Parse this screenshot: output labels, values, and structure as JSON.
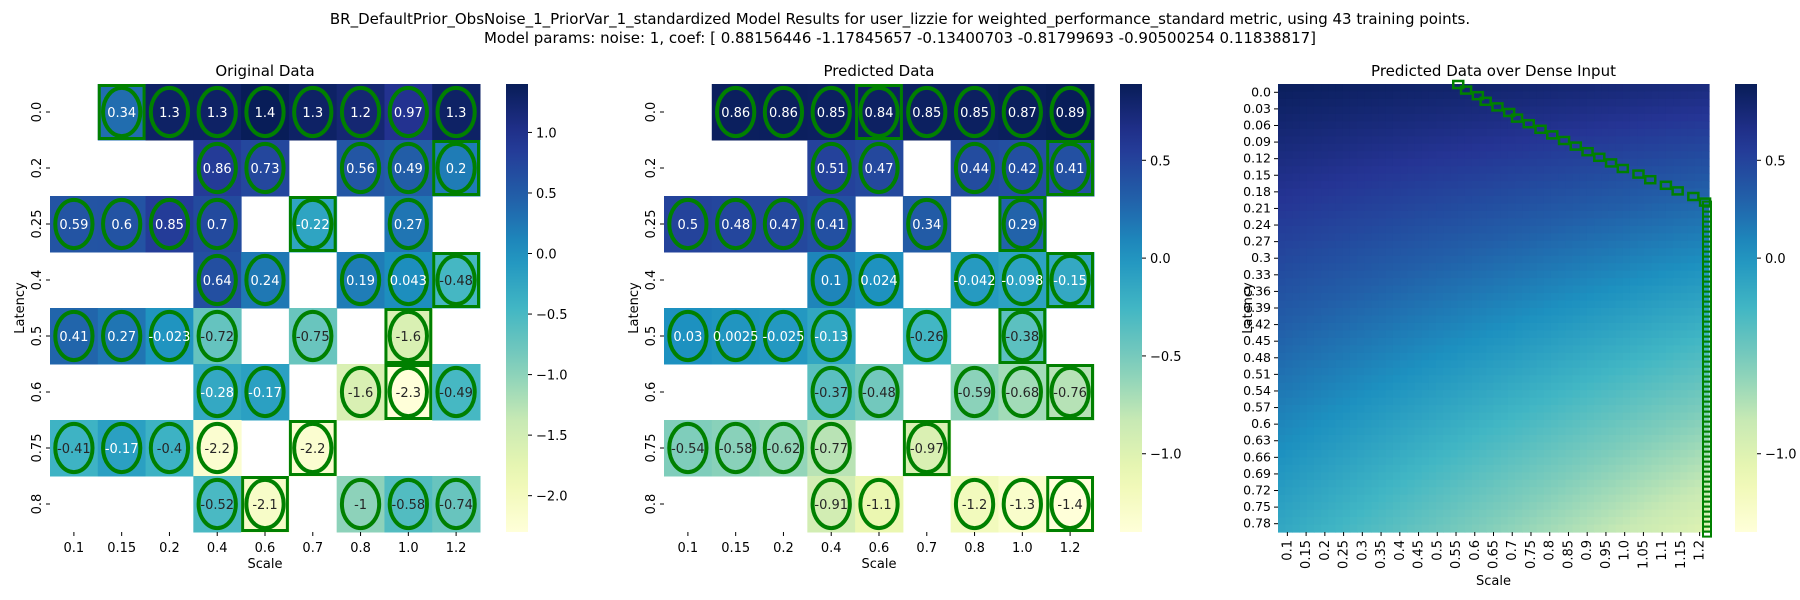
{
  "figure": {
    "title_line1": "BR_DefaultPrior_ObsNoise_1_PriorVar_1_standardized Model Results for user_lizzie for weighted_performance_standard metric, using 43 training points.",
    "title_line2": "Model params: noise: 1, coef: [ 0.88156446 -1.17845657 -0.13400703 -0.81799693 -0.90500254  0.11838817]"
  },
  "colors": {
    "cmap": [
      "#ffffd9",
      "#edf8b1",
      "#c7e9b4",
      "#7fcdbb",
      "#41b6c4",
      "#1d91c0",
      "#225ea8",
      "#253494",
      "#081d58"
    ],
    "marker": "#008000"
  },
  "chart_data": [
    {
      "type": "heatmap",
      "title": "Original Data",
      "xlabel": "Scale",
      "ylabel": "Latency",
      "x_tick_labels": [
        "0.1",
        "0.15",
        "0.2",
        "0.4",
        "0.6",
        "0.7",
        "0.8",
        "1.0",
        "1.2"
      ],
      "y_tick_labels": [
        "0.0",
        "0.2",
        "0.25",
        "0.4",
        "0.5",
        "0.6",
        "0.75",
        "0.8"
      ],
      "vmin": -2.3,
      "vmax": 1.4,
      "colorbar_ticks": [
        1.0,
        0.5,
        0.0,
        -0.5,
        -1.0,
        -1.5,
        -2.0
      ],
      "colorbar_tick_labels": [
        "1.0",
        "0.5",
        "0.0",
        "−0.5",
        "−1.0",
        "−1.5",
        "−2.0"
      ],
      "values": [
        [
          null,
          0.34,
          1.3,
          1.3,
          1.4,
          1.3,
          1.2,
          0.97,
          1.3
        ],
        [
          null,
          null,
          null,
          0.86,
          0.73,
          null,
          0.56,
          0.49,
          0.2
        ],
        [
          0.59,
          0.6,
          0.85,
          0.7,
          null,
          -0.22,
          null,
          0.27,
          null
        ],
        [
          null,
          null,
          null,
          0.64,
          0.24,
          null,
          0.19,
          0.043,
          -0.48
        ],
        [
          0.41,
          0.27,
          -0.023,
          -0.72,
          null,
          -0.75,
          null,
          -1.6,
          null
        ],
        [
          null,
          null,
          null,
          -0.28,
          -0.17,
          null,
          -1.6,
          -2.3,
          -0.49
        ],
        [
          -0.41,
          -0.17,
          -0.4,
          -2.2,
          null,
          -2.2,
          null,
          null,
          null
        ],
        [
          null,
          null,
          null,
          -0.52,
          -2.1,
          null,
          -1,
          -0.58,
          -0.74
        ]
      ],
      "annotations": [
        [
          null,
          "0.34",
          "1.3",
          "1.3",
          "1.4",
          "1.3",
          "1.2",
          "0.97",
          "1.3"
        ],
        [
          null,
          null,
          null,
          "0.86",
          "0.73",
          null,
          "0.56",
          "0.49",
          "0.2"
        ],
        [
          "0.59",
          "0.6",
          "0.85",
          "0.7",
          null,
          "-0.22",
          null,
          "0.27",
          null
        ],
        [
          null,
          null,
          null,
          "0.64",
          "0.24",
          null,
          "0.19",
          "0.043",
          "-0.48"
        ],
        [
          "0.41",
          "0.27",
          "-0.023",
          "-0.72",
          null,
          "-0.75",
          null,
          "-1.6",
          null
        ],
        [
          null,
          null,
          null,
          "-0.28",
          "-0.17",
          null,
          "-1.6",
          "-2.3",
          "-0.49"
        ],
        [
          "-0.41",
          "-0.17",
          "-0.4",
          "-2.2",
          null,
          "-2.2",
          null,
          null,
          null
        ],
        [
          null,
          null,
          null,
          "-0.52",
          "-2.1",
          null,
          "-1",
          "-0.58",
          "-0.74"
        ]
      ],
      "highlight_boxes": [
        [
          0,
          1
        ],
        [
          1,
          8
        ],
        [
          2,
          5
        ],
        [
          3,
          8
        ],
        [
          4,
          7
        ],
        [
          5,
          7
        ],
        [
          6,
          5
        ],
        [
          7,
          4
        ]
      ]
    },
    {
      "type": "heatmap",
      "title": "Predicted Data",
      "xlabel": "Scale",
      "ylabel": "Latency",
      "x_tick_labels": [
        "0.1",
        "0.15",
        "0.2",
        "0.4",
        "0.6",
        "0.7",
        "0.8",
        "1.0",
        "1.2"
      ],
      "y_tick_labels": [
        "0.0",
        "0.2",
        "0.25",
        "0.4",
        "0.5",
        "0.6",
        "0.75",
        "0.8"
      ],
      "vmin": -1.4,
      "vmax": 0.89,
      "colorbar_ticks": [
        0.5,
        0.0,
        -0.5,
        -1.0
      ],
      "colorbar_tick_labels": [
        "0.5",
        "0.0",
        "−0.5",
        "−1.0"
      ],
      "values": [
        [
          null,
          0.86,
          0.86,
          0.85,
          0.84,
          0.85,
          0.85,
          0.87,
          0.89
        ],
        [
          null,
          null,
          null,
          0.51,
          0.47,
          null,
          0.44,
          0.42,
          0.41
        ],
        [
          0.5,
          0.48,
          0.47,
          0.41,
          null,
          0.34,
          null,
          0.29,
          null
        ],
        [
          null,
          null,
          null,
          0.1,
          0.024,
          null,
          -0.042,
          -0.098,
          -0.15
        ],
        [
          0.03,
          0.0025,
          -0.025,
          -0.13,
          null,
          -0.26,
          null,
          -0.38,
          null
        ],
        [
          null,
          null,
          null,
          -0.37,
          -0.48,
          null,
          -0.59,
          -0.68,
          -0.76
        ],
        [
          -0.54,
          -0.58,
          -0.62,
          -0.77,
          null,
          -0.97,
          null,
          null,
          null
        ],
        [
          null,
          null,
          null,
          -0.91,
          -1.1,
          null,
          -1.2,
          -1.3,
          -1.4
        ]
      ],
      "annotations": [
        [
          null,
          "0.86",
          "0.86",
          "0.85",
          "0.84",
          "0.85",
          "0.85",
          "0.87",
          "0.89"
        ],
        [
          null,
          null,
          null,
          "0.51",
          "0.47",
          null,
          "0.44",
          "0.42",
          "0.41"
        ],
        [
          "0.5",
          "0.48",
          "0.47",
          "0.41",
          null,
          "0.34",
          null,
          "0.29",
          null
        ],
        [
          null,
          null,
          null,
          "0.1",
          "0.024",
          null,
          "-0.042",
          "-0.098",
          "-0.15"
        ],
        [
          "0.03",
          "0.0025",
          "-0.025",
          "-0.13",
          null,
          "-0.26",
          null,
          "-0.38",
          null
        ],
        [
          null,
          null,
          null,
          "-0.37",
          "-0.48",
          null,
          "-0.59",
          "-0.68",
          "-0.76"
        ],
        [
          "-0.54",
          "-0.58",
          "-0.62",
          "-0.77",
          null,
          "-0.97",
          null,
          null,
          null
        ],
        [
          null,
          null,
          null,
          "-0.91",
          "-1.1",
          null,
          "-1.2",
          "-1.3",
          "-1.4"
        ]
      ],
      "highlight_boxes": [
        [
          0,
          4
        ],
        [
          1,
          8
        ],
        [
          2,
          7
        ],
        [
          3,
          8
        ],
        [
          4,
          7
        ],
        [
          5,
          8
        ],
        [
          6,
          5
        ],
        [
          7,
          8
        ]
      ]
    },
    {
      "type": "heatmap",
      "title": "Predicted Data over Dense Input",
      "xlabel": "Scale",
      "ylabel": "Latency",
      "x_tick_labels": [
        "0.1",
        "0.15",
        "0.2",
        "0.25",
        "0.3",
        "0.35",
        "0.4",
        "0.45",
        "0.5",
        "0.55",
        "0.6",
        "0.65",
        "0.7",
        "0.75",
        "0.8",
        "0.85",
        "0.9",
        "0.95",
        "1.0",
        "1.05",
        "1.1",
        "1.15",
        "1.2"
      ],
      "y_tick_labels": [
        "0.0",
        "0.03",
        "0.06",
        "0.09",
        "0.12",
        "0.15",
        "0.18",
        "0.21",
        "0.24",
        "0.27",
        "0.3",
        "0.33",
        "0.36",
        "0.39",
        "0.42",
        "0.45",
        "0.48",
        "0.51",
        "0.54",
        "0.57",
        "0.6",
        "0.63",
        "0.66",
        "0.69",
        "0.72",
        "0.75",
        "0.78"
      ],
      "x_range": [
        0.1,
        1.2
      ],
      "y_range": [
        0.0,
        0.8
      ],
      "vmin": -1.4,
      "vmax": 0.89,
      "colorbar_ticks": [
        0.5,
        0.0,
        -1.0
      ],
      "colorbar_tick_labels": [
        "0.5",
        "0.0",
        "−1.0"
      ],
      "model": {
        "description": "value approximately 0.88 - 1.18*latency - 0.134*scale - 0.82*latency*scale",
        "intercept": 0.88,
        "latency_coef": -1.18,
        "scale_coef": -0.134,
        "interaction_coef": -0.82
      },
      "argmax_markers": [
        {
          "x": 0.56,
          "y": 0.0
        },
        {
          "x": 0.58,
          "y": 0.01
        },
        {
          "x": 0.61,
          "y": 0.02
        },
        {
          "x": 0.63,
          "y": 0.03
        },
        {
          "x": 0.66,
          "y": 0.04
        },
        {
          "x": 0.69,
          "y": 0.05
        },
        {
          "x": 0.71,
          "y": 0.06
        },
        {
          "x": 0.74,
          "y": 0.07
        },
        {
          "x": 0.77,
          "y": 0.08
        },
        {
          "x": 0.8,
          "y": 0.09
        },
        {
          "x": 0.83,
          "y": 0.1
        },
        {
          "x": 0.86,
          "y": 0.11
        },
        {
          "x": 0.89,
          "y": 0.12
        },
        {
          "x": 0.92,
          "y": 0.13
        },
        {
          "x": 0.95,
          "y": 0.14
        },
        {
          "x": 0.98,
          "y": 0.15
        },
        {
          "x": 1.02,
          "y": 0.16
        },
        {
          "x": 1.05,
          "y": 0.17
        },
        {
          "x": 1.09,
          "y": 0.18
        },
        {
          "x": 1.12,
          "y": 0.19
        },
        {
          "x": 1.16,
          "y": 0.2
        },
        {
          "x": 1.19,
          "y": 0.21
        }
      ],
      "edge_marker_x": 1.2,
      "edge_marker_y_range": [
        0.21,
        0.8
      ]
    }
  ]
}
